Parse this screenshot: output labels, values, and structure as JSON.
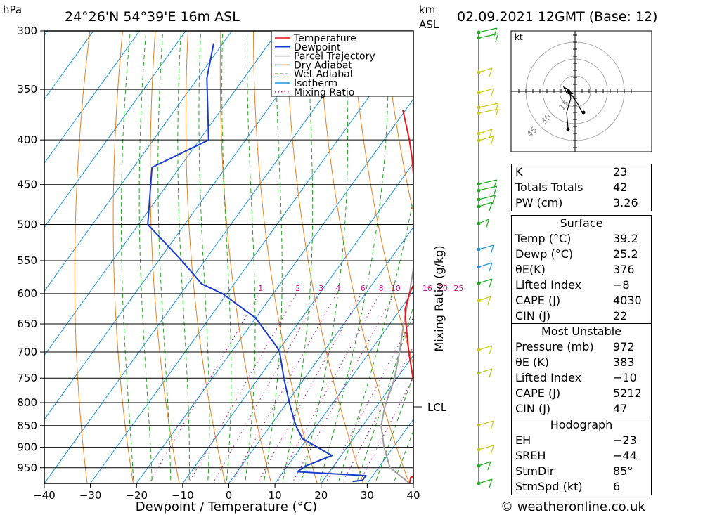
{
  "header": {
    "pressure_unit": "hPa",
    "location": "24°26'N  54°39'E  16m  ASL",
    "height_unit": "km",
    "height_unit2": "ASL",
    "datetime": "02.09.2021  12GMT  (Base: 12)"
  },
  "footer": {
    "credit": "© weatheronline.co.uk"
  },
  "chart_data": {
    "type": "skew-t",
    "xlabel": "Dewpoint / Temperature (°C)",
    "mixing_ratio_label": "Mixing Ratio (g/kg)",
    "lcl_label": "LCL",
    "xlim": [
      -40,
      40
    ],
    "ylim_hpa": [
      990,
      300
    ],
    "x_ticks": [
      "−40",
      "−30",
      "−20",
      "−10",
      "0",
      "10",
      "20",
      "30",
      "40"
    ],
    "pressure_levels": [
      300,
      350,
      400,
      450,
      500,
      550,
      600,
      650,
      700,
      750,
      800,
      850,
      900,
      950
    ],
    "mixing_ratio_values": [
      "1",
      "2",
      "3",
      "4",
      "6",
      "8",
      "10",
      "16",
      "20",
      "25"
    ],
    "legend": [
      {
        "name": "Temperature",
        "color": "#e8141e",
        "style": "solid"
      },
      {
        "name": "Dewpoint",
        "color": "#1a3ccc",
        "style": "solid"
      },
      {
        "name": "Parcel Trajectory",
        "color": "#a0a0a0",
        "style": "solid"
      },
      {
        "name": "Dry Adiabat",
        "color": "#e8821e",
        "style": "solid"
      },
      {
        "name": "Wet Adiabat",
        "color": "#1eaa1e",
        "style": "dashed"
      },
      {
        "name": "Isotherm",
        "color": "#1e96dc",
        "style": "solid"
      },
      {
        "name": "Mixing Ratio",
        "color": "#c8148c",
        "style": "dotted"
      }
    ],
    "temperature": [
      [
        990,
        39.2
      ],
      [
        975,
        38.5
      ],
      [
        960,
        40.0
      ],
      [
        950,
        39.0
      ],
      [
        925,
        37.5
      ],
      [
        900,
        36.0
      ],
      [
        875,
        34.5
      ],
      [
        850,
        33.0
      ],
      [
        800,
        28.5
      ],
      [
        750,
        23.5
      ],
      [
        700,
        18.5
      ],
      [
        650,
        13.5
      ],
      [
        625,
        11.0
      ],
      [
        600,
        9.5
      ],
      [
        585,
        9.0
      ],
      [
        550,
        5.5
      ],
      [
        500,
        0.5
      ],
      [
        450,
        -6.5
      ],
      [
        420,
        -11.0
      ],
      [
        400,
        -14.5
      ],
      [
        370,
        -20.5
      ]
    ],
    "dewpoint": [
      [
        985,
        26.5
      ],
      [
        982,
        28.5
      ],
      [
        970,
        28.5
      ],
      [
        960,
        13.0
      ],
      [
        945,
        14.0
      ],
      [
        920,
        18.0
      ],
      [
        880,
        9.0
      ],
      [
        850,
        5.5
      ],
      [
        800,
        0.5
      ],
      [
        750,
        -4.5
      ],
      [
        700,
        -9.5
      ],
      [
        690,
        -11.0
      ],
      [
        640,
        -20.0
      ],
      [
        600,
        -31.0
      ],
      [
        585,
        -37.0
      ],
      [
        550,
        -45.0
      ],
      [
        500,
        -58.0
      ],
      [
        430,
        -66.0
      ],
      [
        400,
        -58.0
      ],
      [
        340,
        -68.0
      ],
      [
        310,
        -72.0
      ]
    ],
    "parcel": [
      [
        990,
        39.2
      ],
      [
        950,
        32.5
      ],
      [
        900,
        28.0
      ],
      [
        850,
        24.0
      ],
      [
        812,
        22.0
      ],
      [
        800,
        21.5
      ],
      [
        750,
        19.5
      ],
      [
        700,
        16.5
      ],
      [
        650,
        13.0
      ],
      [
        600,
        9.5
      ],
      [
        550,
        5.5
      ],
      [
        500,
        0.0
      ],
      [
        450,
        -5.5
      ],
      [
        400,
        -12.0
      ],
      [
        370,
        -17.0
      ]
    ],
    "wind_km_levels": [
      0,
      1,
      2,
      3,
      4,
      5,
      6,
      7,
      8,
      9
    ],
    "hodograph_unit": "kt",
    "hodograph_rings": [
      "15",
      "30",
      "45"
    ]
  },
  "indices": [
    {
      "label": "K",
      "value": "23"
    },
    {
      "label": "Totals Totals",
      "value": "42"
    },
    {
      "label": "PW (cm)",
      "value": "3.26"
    }
  ],
  "surface": {
    "title": "Surface",
    "rows": [
      {
        "label": "Temp (°C)",
        "value": "39.2"
      },
      {
        "label": "Dewp (°C)",
        "value": "25.2"
      },
      {
        "label": "θE(K)",
        "value": "376"
      },
      {
        "label": "Lifted Index",
        "value": "−8"
      },
      {
        "label": "CAPE (J)",
        "value": "4030"
      },
      {
        "label": "CIN (J)",
        "value": "22"
      }
    ]
  },
  "most_unstable": {
    "title": "Most Unstable",
    "rows": [
      {
        "label": "Pressure (mb)",
        "value": "972"
      },
      {
        "label": "θE (K)",
        "value": "383"
      },
      {
        "label": "Lifted Index",
        "value": "−10"
      },
      {
        "label": "CAPE (J)",
        "value": "5212"
      },
      {
        "label": "CIN (J)",
        "value": "47"
      }
    ]
  },
  "hodograph": {
    "title": "Hodograph",
    "rows": [
      {
        "label": "EH",
        "value": "−23"
      },
      {
        "label": "SREH",
        "value": "−44"
      },
      {
        "label": "StmDir",
        "value": "85°"
      },
      {
        "label": "StmSpd (kt)",
        "value": "6"
      }
    ]
  }
}
